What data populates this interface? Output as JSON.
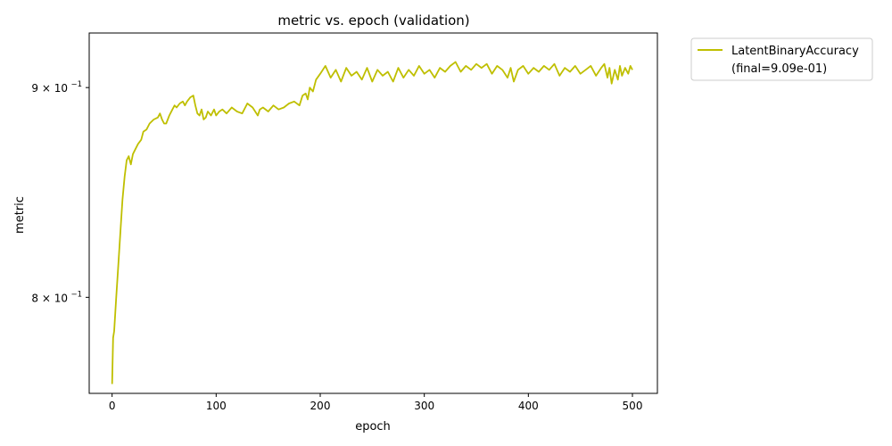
{
  "chart_data": {
    "type": "line",
    "title": "metric vs. epoch (validation)",
    "xlabel": "epoch",
    "ylabel": "metric",
    "xlim": [
      -22,
      524
    ],
    "ylim": [
      0.758,
      0.928
    ],
    "yscale": "log",
    "xticks": [
      0,
      100,
      200,
      300,
      400,
      500
    ],
    "xtick_labels": [
      "0",
      "100",
      "200",
      "300",
      "400",
      "500"
    ],
    "yticks": [
      0.8,
      0.9
    ],
    "ytick_labels": [
      "8 × 10",
      "9 × 10"
    ],
    "ytick_exponent": "−1",
    "grid": false,
    "legend_position": "outside-top-right",
    "series": [
      {
        "name": "LatentBinaryAccuracy",
        "legend_note": "(final=9.09e-01)",
        "color": "#bfbf00",
        "x": [
          0,
          1,
          2,
          4,
          6,
          8,
          10,
          12,
          14,
          16,
          18,
          20,
          22,
          25,
          28,
          30,
          33,
          36,
          40,
          44,
          46,
          48,
          50,
          52,
          55,
          58,
          60,
          62,
          65,
          68,
          70,
          72,
          75,
          78,
          80,
          82,
          84,
          86,
          88,
          90,
          92,
          95,
          98,
          100,
          103,
          106,
          110,
          115,
          120,
          125,
          130,
          135,
          140,
          142,
          145,
          150,
          155,
          160,
          165,
          170,
          175,
          180,
          183,
          186,
          188,
          190,
          193,
          196,
          200,
          205,
          210,
          215,
          220,
          225,
          230,
          235,
          240,
          245,
          250,
          255,
          260,
          265,
          270,
          275,
          280,
          285,
          290,
          295,
          300,
          305,
          310,
          315,
          320,
          325,
          330,
          335,
          340,
          345,
          350,
          355,
          360,
          365,
          370,
          375,
          380,
          383,
          386,
          390,
          395,
          400,
          405,
          410,
          415,
          420,
          425,
          430,
          435,
          440,
          445,
          450,
          455,
          460,
          465,
          470,
          473,
          476,
          478,
          480,
          483,
          486,
          488,
          490,
          493,
          496,
          498,
          500
        ],
        "values": [
          0.762,
          0.782,
          0.785,
          0.8,
          0.815,
          0.83,
          0.845,
          0.856,
          0.864,
          0.866,
          0.862,
          0.867,
          0.869,
          0.872,
          0.874,
          0.878,
          0.879,
          0.882,
          0.884,
          0.885,
          0.887,
          0.884,
          0.882,
          0.882,
          0.886,
          0.889,
          0.891,
          0.89,
          0.892,
          0.893,
          0.891,
          0.893,
          0.895,
          0.896,
          0.891,
          0.887,
          0.886,
          0.889,
          0.884,
          0.885,
          0.888,
          0.886,
          0.889,
          0.886,
          0.888,
          0.889,
          0.887,
          0.89,
          0.888,
          0.887,
          0.892,
          0.89,
          0.886,
          0.889,
          0.89,
          0.888,
          0.891,
          0.889,
          0.89,
          0.892,
          0.893,
          0.891,
          0.896,
          0.897,
          0.894,
          0.9,
          0.898,
          0.904,
          0.907,
          0.911,
          0.905,
          0.909,
          0.903,
          0.91,
          0.906,
          0.908,
          0.904,
          0.91,
          0.903,
          0.909,
          0.906,
          0.908,
          0.903,
          0.91,
          0.905,
          0.909,
          0.906,
          0.911,
          0.907,
          0.909,
          0.905,
          0.91,
          0.908,
          0.911,
          0.913,
          0.908,
          0.911,
          0.909,
          0.912,
          0.91,
          0.912,
          0.907,
          0.911,
          0.909,
          0.905,
          0.91,
          0.903,
          0.909,
          0.911,
          0.907,
          0.91,
          0.908,
          0.911,
          0.909,
          0.912,
          0.906,
          0.91,
          0.908,
          0.911,
          0.907,
          0.909,
          0.911,
          0.906,
          0.91,
          0.912,
          0.905,
          0.91,
          0.902,
          0.909,
          0.904,
          0.911,
          0.906,
          0.91,
          0.907,
          0.911,
          0.909
        ]
      }
    ]
  }
}
